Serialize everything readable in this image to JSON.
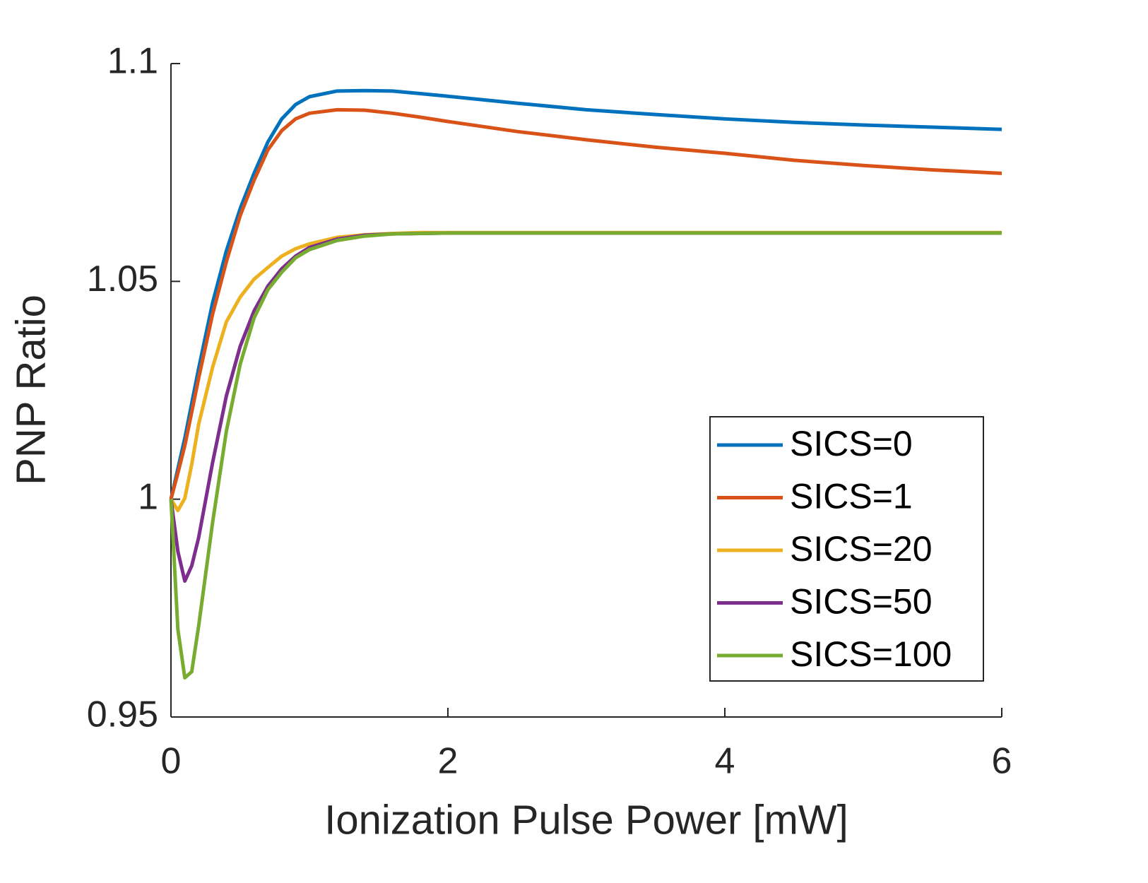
{
  "chart_data": {
    "type": "line",
    "xlabel": "Ionization Pulse Power [mW]",
    "ylabel": "PNP Ratio",
    "x": [
      0,
      0.05,
      0.1,
      0.15,
      0.2,
      0.3,
      0.4,
      0.5,
      0.6,
      0.7,
      0.8,
      0.9,
      1.0,
      1.2,
      1.4,
      1.6,
      1.8,
      2.0,
      2.5,
      3,
      3.5,
      4,
      4.5,
      5,
      5.5,
      6
    ],
    "series": [
      {
        "name": "SICS=0",
        "color": "#0072bd",
        "values": [
          1.0,
          1.007,
          1.014,
          1.022,
          1.03,
          1.045,
          1.057,
          1.0667,
          1.0748,
          1.082,
          1.0873,
          1.0906,
          1.0924,
          1.0937,
          1.0938,
          1.0937,
          1.0931,
          1.0925,
          1.0909,
          1.0894,
          1.0883,
          1.0873,
          1.0865,
          1.0859,
          1.0854,
          1.0849
        ]
      },
      {
        "name": "SICS=1",
        "color": "#d95319",
        "values": [
          1.0,
          1.006,
          1.0123,
          1.02,
          1.0278,
          1.0424,
          1.0545,
          1.0651,
          1.0732,
          1.0802,
          1.0846,
          1.0873,
          1.0886,
          1.0894,
          1.0893,
          1.0886,
          1.0877,
          1.0867,
          1.0844,
          1.0825,
          1.0808,
          1.0794,
          1.0778,
          1.0766,
          1.0756,
          1.0748
        ]
      },
      {
        "name": "SICS=20",
        "color": "#edb120",
        "values": [
          1.0,
          0.9974,
          1.0002,
          1.008,
          1.0172,
          1.0302,
          1.0407,
          1.0464,
          1.0505,
          1.0532,
          1.0558,
          1.0575,
          1.0586,
          1.0601,
          1.0607,
          1.061,
          1.0612,
          1.0612,
          1.0612,
          1.0612,
          1.0612,
          1.0612,
          1.0612,
          1.0612,
          1.0612,
          1.0612
        ]
      },
      {
        "name": "SICS=50",
        "color": "#7e2f8e",
        "values": [
          1.0,
          0.988,
          0.9812,
          0.9847,
          0.9912,
          1.0083,
          1.0237,
          1.0351,
          1.0432,
          1.0489,
          1.0529,
          1.0558,
          1.0578,
          1.0597,
          1.0606,
          1.0609,
          1.061,
          1.0611,
          1.0611,
          1.0611,
          1.0611,
          1.0611,
          1.0611,
          1.0611,
          1.0611,
          1.0611
        ]
      },
      {
        "name": "SICS=100",
        "color": "#77ac30",
        "values": [
          1.0,
          0.9701,
          0.959,
          0.9604,
          0.9709,
          0.9945,
          1.0156,
          1.031,
          1.0416,
          1.0481,
          1.0521,
          1.0554,
          1.0573,
          1.0594,
          1.0604,
          1.0609,
          1.061,
          1.0611,
          1.0611,
          1.0611,
          1.0611,
          1.0611,
          1.0611,
          1.0611,
          1.0611,
          1.0611
        ]
      }
    ],
    "xlim": [
      0,
      6
    ],
    "xticks": [
      0,
      2,
      4,
      6
    ],
    "ylim": [
      0.95,
      1.1
    ],
    "yticks": [
      0.95,
      1,
      1.05,
      1.1
    ],
    "grid": false,
    "legend": "east"
  }
}
